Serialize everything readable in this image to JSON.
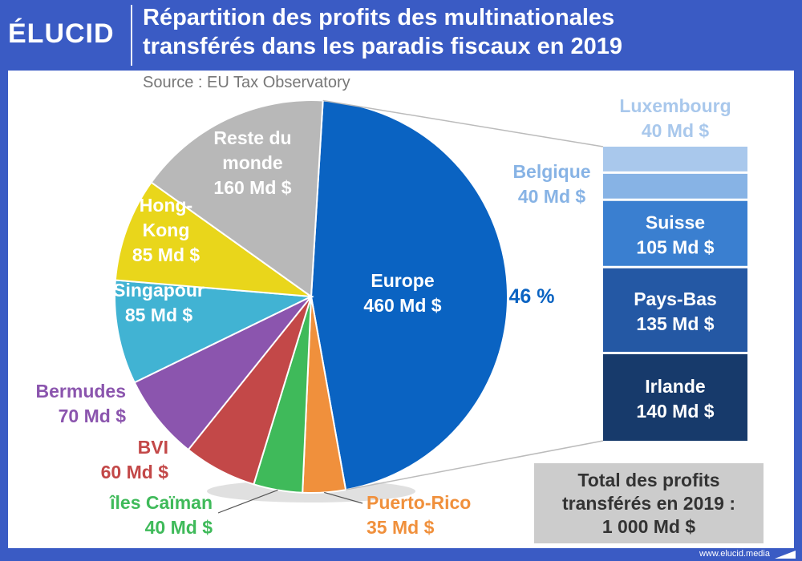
{
  "header": {
    "logo": "ÉLUCID",
    "title_line1": "Répartition des profits des multinationales",
    "title_line2": "transférés dans les paradis fiscaux en 2019"
  },
  "source": "Source : EU Tax Observatory",
  "footer": {
    "url": "www.elucid.media"
  },
  "total": {
    "line1": "Total des profits",
    "line2": "transférés en 2019 :",
    "line3": "1 000 Md $"
  },
  "chart_data": {
    "type": "pie",
    "total": 1000,
    "unit": "Md $",
    "slices": [
      {
        "name": "Europe",
        "value": 460,
        "label": "460 Md $",
        "color": "#0a63c2"
      },
      {
        "name": "Puerto-Rico",
        "value": 35,
        "label": "35 Md $",
        "color": "#f0903c"
      },
      {
        "name": "îles Caïman",
        "value": 40,
        "label": "40 Md $",
        "color": "#3fba5a"
      },
      {
        "name": "BVI",
        "value": 60,
        "label": "60 Md $",
        "color": "#c34848"
      },
      {
        "name": "Bermudes",
        "value": 70,
        "label": "70 Md $",
        "color": "#8b55ae"
      },
      {
        "name": "Singapour",
        "value": 85,
        "label": "85 Md $",
        "color": "#41b3d3"
      },
      {
        "name": "Hong-Kong",
        "value": 85,
        "label": "85 Md $",
        "color": "#e9d61b"
      },
      {
        "name": "Reste du monde",
        "value": 160,
        "label": "160 Md $",
        "color": "#b8b8b8"
      }
    ],
    "europe_percent_label": "46 %",
    "europe_breakdown": [
      {
        "name": "Luxembourg",
        "value": 40,
        "label": "40 Md $",
        "color": "#a9c8ec"
      },
      {
        "name": "Belgique",
        "value": 40,
        "label": "40 Md $",
        "color": "#87b3e5"
      },
      {
        "name": "Suisse",
        "value": 105,
        "label": "105 Md $",
        "color": "#3a7fd0"
      },
      {
        "name": "Pays-Bas",
        "value": 135,
        "label": "135 Md $",
        "color": "#2458a4"
      },
      {
        "name": "Irlande",
        "value": 140,
        "label": "140 Md $",
        "color": "#173a6b"
      }
    ]
  }
}
